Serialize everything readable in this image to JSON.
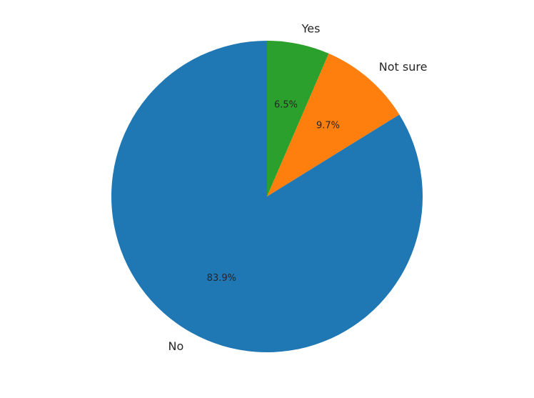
{
  "chart_data": {
    "type": "pie",
    "title": "",
    "start": "top",
    "direction": "clockwise",
    "legend": "none",
    "slices": [
      {
        "label": "Yes",
        "value": 6.5,
        "pct_label": "6.5%",
        "color": "#2ca02c"
      },
      {
        "label": "Not sure",
        "value": 9.7,
        "pct_label": "9.7%",
        "color": "#ff7f0e"
      },
      {
        "label": "No",
        "value": 83.9,
        "pct_label": "83.9%",
        "color": "#1f77b4"
      }
    ]
  }
}
